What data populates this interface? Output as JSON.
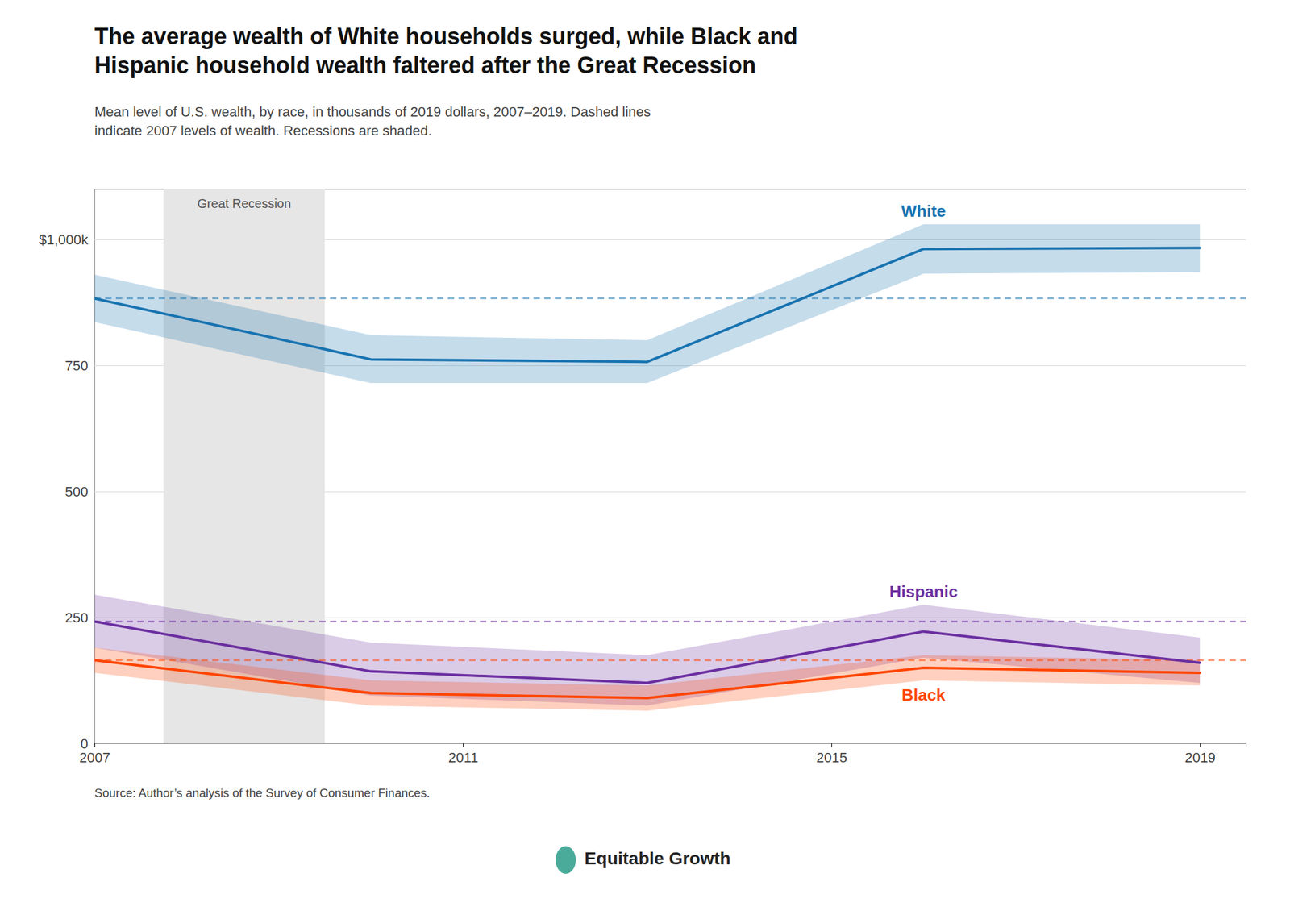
{
  "chart_data": {
    "type": "line",
    "title": "The average wealth of White households surged, while Black and\nHispanic household wealth faltered after the Great Recession",
    "subtitle": "Mean level of U.S. wealth, by race, in thousands of 2019 dollars, 2007–2019. Dashed lines\nindicate 2007 levels of wealth. Recessions are shaded.",
    "source": "Source: Author’s analysis of the Survey of Consumer Finances.",
    "credit": "Equitable Growth",
    "x": [
      2007,
      2010,
      2013,
      2016,
      2019
    ],
    "series": [
      {
        "name": "White",
        "color": "#1873b0",
        "values": [
          883,
          762,
          757,
          981,
          983
        ],
        "upper": [
          930,
          810,
          800,
          1030,
          1030
        ],
        "lower": [
          836,
          715,
          715,
          932,
          935
        ],
        "reference": 883
      },
      {
        "name": "Hispanic",
        "color": "#6b2fa0",
        "values": [
          242,
          143,
          120,
          222,
          160
        ],
        "upper": [
          295,
          200,
          175,
          275,
          210
        ],
        "lower": [
          190,
          95,
          75,
          170,
          120
        ],
        "reference": 242
      },
      {
        "name": "Black",
        "color": "#ff4500",
        "values": [
          165,
          100,
          90,
          150,
          140
        ],
        "upper": [
          190,
          125,
          115,
          175,
          165
        ],
        "lower": [
          140,
          75,
          65,
          125,
          115
        ],
        "reference": 165
      }
    ],
    "shaded_regions": [
      {
        "start": 2007.75,
        "end": 2009.5,
        "label": "Great Recession"
      }
    ],
    "xlim": [
      2007,
      2019.5
    ],
    "xticks": [
      2007,
      2011,
      2015,
      2019
    ],
    "ylim": [
      0,
      1100
    ],
    "yticks": [
      0,
      250,
      500,
      750,
      {
        "value": 1000,
        "label": "$1,000k"
      }
    ],
    "grid": true
  }
}
